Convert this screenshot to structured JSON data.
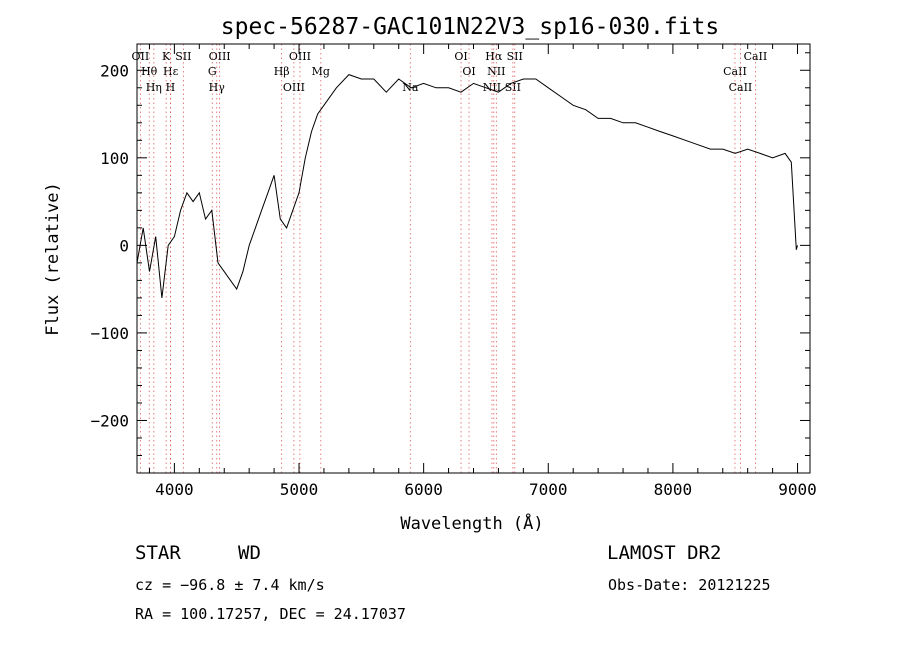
{
  "chart_data": {
    "type": "line",
    "title": "spec-56287-GAC101N22V3_sp16-030.fits",
    "xlabel": "Wavelength (Å)",
    "ylabel": "Flux (relative)",
    "xlim": [
      3700,
      9100
    ],
    "ylim": [
      -260,
      230
    ],
    "x_ticks": [
      4000,
      5000,
      6000,
      7000,
      8000,
      9000
    ],
    "y_ticks": [
      -200,
      -100,
      0,
      100,
      200
    ],
    "grid": false,
    "legend": "none",
    "series": [
      {
        "x": [
          3700,
          3750,
          3800,
          3850,
          3900,
          3950,
          4000,
          4050,
          4100,
          4150,
          4200,
          4250,
          4300,
          4350,
          4400,
          4450,
          4500,
          4550,
          4600,
          4650,
          4700,
          4750,
          4800,
          4850,
          4900,
          4950,
          5000,
          5050,
          5100,
          5150,
          5200,
          5300,
          5400,
          5500,
          5600,
          5700,
          5800,
          5900,
          6000,
          6100,
          6200,
          6300,
          6400,
          6500,
          6600,
          6700,
          6800,
          6900,
          7000,
          7100,
          7200,
          7300,
          7400,
          7500,
          7600,
          7700,
          7800,
          7900,
          8000,
          8100,
          8200,
          8300,
          8400,
          8500,
          8600,
          8700,
          8800,
          8900,
          8950,
          8990,
          9000
        ],
        "y": [
          -20,
          20,
          -30,
          10,
          -60,
          0,
          10,
          40,
          60,
          50,
          60,
          30,
          40,
          -20,
          -30,
          -40,
          -50,
          -30,
          0,
          20,
          40,
          60,
          80,
          30,
          20,
          40,
          60,
          100,
          130,
          150,
          160,
          180,
          195,
          190,
          190,
          175,
          190,
          180,
          185,
          180,
          180,
          175,
          185,
          180,
          175,
          185,
          190,
          190,
          180,
          170,
          160,
          155,
          145,
          145,
          140,
          140,
          135,
          130,
          125,
          120,
          115,
          110,
          110,
          105,
          110,
          105,
          100,
          105,
          95,
          -5,
          0
        ]
      }
    ],
    "emission_lines": [
      {
        "label": "OII",
        "x": 3727
      },
      {
        "label": "Hθ",
        "x": 3798
      },
      {
        "label": "Hη",
        "x": 3835
      },
      {
        "label": "K",
        "x": 3934
      },
      {
        "label": "Hε",
        "x": 3970
      },
      {
        "label": "H",
        "x": 3968
      },
      {
        "label": "SII",
        "x": 4072
      },
      {
        "label": "G",
        "x": 4304
      },
      {
        "label": "Hγ",
        "x": 4340
      },
      {
        "label": "OIII",
        "x": 4363
      },
      {
        "label": "Hβ",
        "x": 4861
      },
      {
        "label": "OIII",
        "x": 4959
      },
      {
        "label": "OIII",
        "x": 5007
      },
      {
        "label": "Mg",
        "x": 5175
      },
      {
        "label": "Na",
        "x": 5893
      },
      {
        "label": "OI",
        "x": 6300
      },
      {
        "label": "OI",
        "x": 6364
      },
      {
        "label": "NII",
        "x": 6548
      },
      {
        "label": "Hα",
        "x": 6563
      },
      {
        "label": "NII",
        "x": 6583
      },
      {
        "label": "SII",
        "x": 6716
      },
      {
        "label": "SII",
        "x": 6731
      },
      {
        "label": "CaII",
        "x": 8498
      },
      {
        "label": "CaII",
        "x": 8542
      },
      {
        "label": "CaII",
        "x": 8662
      }
    ]
  },
  "info": {
    "object_class": "STAR",
    "subclass": "WD",
    "cz": "cz = −96.8 ± 7.4 km/s",
    "radec": "RA = 100.17257, DEC =  24.17037",
    "survey": "LAMOST DR2",
    "obs_date": "Obs-Date: 20121225"
  }
}
